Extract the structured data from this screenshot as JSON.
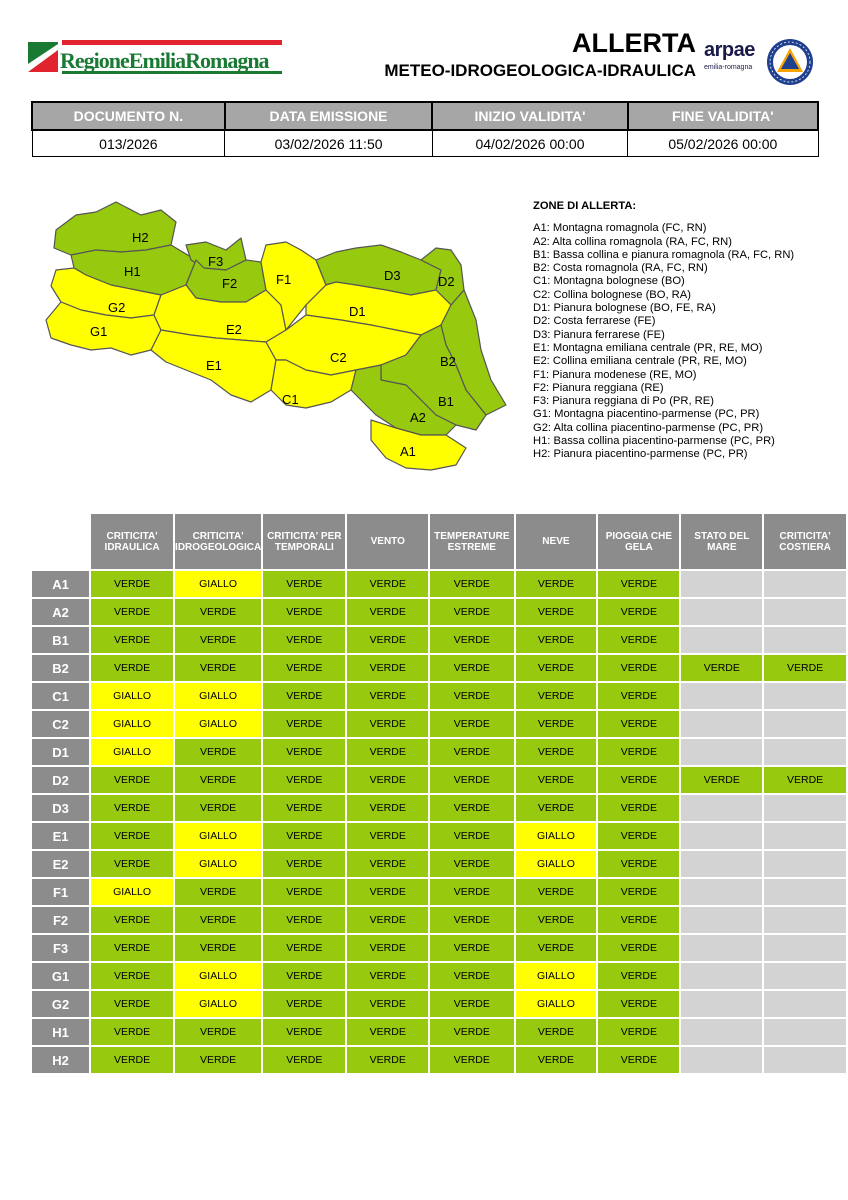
{
  "header": {
    "region_name": "RegioneEmiliaRomagna",
    "title": "ALLERTA",
    "subtitle": "METEO-IDROGEOLOGICA-IDRAULICA",
    "arpae_word": "arpae",
    "arpae_sub": "emilia-romagna"
  },
  "document": {
    "headers": [
      "DOCUMENTO N.",
      "DATA EMISSIONE",
      "INIZIO VALIDITA'",
      "FINE VALIDITA'"
    ],
    "values": [
      "013/2026",
      "03/02/2026 11:50",
      "04/02/2026 00:00",
      "05/02/2026 00:00"
    ]
  },
  "colors": {
    "verde": "#97c90e",
    "giallo": "#ffff00",
    "not_applicable": "#d3d3d3",
    "header_gray": "#8c8c8c"
  },
  "zones_legend": {
    "title": "ZONE DI ALLERTA:",
    "items": [
      "A1: Montagna romagnola (FC, RN)",
      "A2: Alta collina romagnola (RA, FC, RN)",
      "B1: Bassa collina e pianura romagnola (RA, FC, RN)",
      "B2: Costa romagnola (RA, FC, RN)",
      "C1: Montagna bolognese (BO)",
      "C2: Collina bolognese (BO, RA)",
      "D1: Pianura bolognese (BO, FE, RA)",
      "D2: Costa ferrarese (FE)",
      "D3: Pianura ferrarese (FE)",
      "E1: Montagna emiliana centrale (PR, RE, MO)",
      "E2: Collina emiliana centrale (PR, RE, MO)",
      "F1: Pianura modenese (RE, MO)",
      "F2: Pianura reggiana (RE)",
      "F3: Pianura reggiana di Po (PR, RE)",
      "G1: Montagna piacentino-parmense (PC, PR)",
      "G2: Alta collina piacentino-parmense (PC, PR)",
      "H1: Bassa collina piacentino-parmense (PC, PR)",
      "H2: Pianura piacentino-parmense (PC, PR)"
    ]
  },
  "map": {
    "zones": [
      {
        "id": "H2",
        "level": "verde"
      },
      {
        "id": "H1",
        "level": "verde"
      },
      {
        "id": "G2",
        "level": "giallo"
      },
      {
        "id": "G1",
        "level": "giallo"
      },
      {
        "id": "F3",
        "level": "verde"
      },
      {
        "id": "F2",
        "level": "verde"
      },
      {
        "id": "F1",
        "level": "giallo"
      },
      {
        "id": "E2",
        "level": "giallo"
      },
      {
        "id": "E1",
        "level": "giallo"
      },
      {
        "id": "D3",
        "level": "verde"
      },
      {
        "id": "D2",
        "level": "verde"
      },
      {
        "id": "D1",
        "level": "giallo"
      },
      {
        "id": "C2",
        "level": "giallo"
      },
      {
        "id": "C1",
        "level": "giallo"
      },
      {
        "id": "B2",
        "level": "verde"
      },
      {
        "id": "B1",
        "level": "verde"
      },
      {
        "id": "A2",
        "level": "verde"
      },
      {
        "id": "A1",
        "level": "giallo"
      }
    ]
  },
  "alert_table": {
    "columns": [
      "CRITICITA' IDRAULICA",
      "CRITICITA' IDROGEOLOGICA",
      "CRITICITA' PER TEMPORALI",
      "VENTO",
      "TEMPERATURE ESTREME",
      "NEVE",
      "PIOGGIA CHE GELA",
      "STATO DEL MARE",
      "CRITICITA' COSTIERA"
    ],
    "rows": [
      {
        "zone": "A1",
        "values": [
          "VERDE",
          "GIALLO",
          "VERDE",
          "VERDE",
          "VERDE",
          "VERDE",
          "VERDE",
          "",
          ""
        ]
      },
      {
        "zone": "A2",
        "values": [
          "VERDE",
          "VERDE",
          "VERDE",
          "VERDE",
          "VERDE",
          "VERDE",
          "VERDE",
          "",
          ""
        ]
      },
      {
        "zone": "B1",
        "values": [
          "VERDE",
          "VERDE",
          "VERDE",
          "VERDE",
          "VERDE",
          "VERDE",
          "VERDE",
          "",
          ""
        ]
      },
      {
        "zone": "B2",
        "values": [
          "VERDE",
          "VERDE",
          "VERDE",
          "VERDE",
          "VERDE",
          "VERDE",
          "VERDE",
          "VERDE",
          "VERDE"
        ]
      },
      {
        "zone": "C1",
        "values": [
          "GIALLO",
          "GIALLO",
          "VERDE",
          "VERDE",
          "VERDE",
          "VERDE",
          "VERDE",
          "",
          ""
        ]
      },
      {
        "zone": "C2",
        "values": [
          "GIALLO",
          "GIALLO",
          "VERDE",
          "VERDE",
          "VERDE",
          "VERDE",
          "VERDE",
          "",
          ""
        ]
      },
      {
        "zone": "D1",
        "values": [
          "GIALLO",
          "VERDE",
          "VERDE",
          "VERDE",
          "VERDE",
          "VERDE",
          "VERDE",
          "",
          ""
        ]
      },
      {
        "zone": "D2",
        "values": [
          "VERDE",
          "VERDE",
          "VERDE",
          "VERDE",
          "VERDE",
          "VERDE",
          "VERDE",
          "VERDE",
          "VERDE"
        ]
      },
      {
        "zone": "D3",
        "values": [
          "VERDE",
          "VERDE",
          "VERDE",
          "VERDE",
          "VERDE",
          "VERDE",
          "VERDE",
          "",
          ""
        ]
      },
      {
        "zone": "E1",
        "values": [
          "VERDE",
          "GIALLO",
          "VERDE",
          "VERDE",
          "VERDE",
          "GIALLO",
          "VERDE",
          "",
          ""
        ]
      },
      {
        "zone": "E2",
        "values": [
          "VERDE",
          "GIALLO",
          "VERDE",
          "VERDE",
          "VERDE",
          "GIALLO",
          "VERDE",
          "",
          ""
        ]
      },
      {
        "zone": "F1",
        "values": [
          "GIALLO",
          "VERDE",
          "VERDE",
          "VERDE",
          "VERDE",
          "VERDE",
          "VERDE",
          "",
          ""
        ]
      },
      {
        "zone": "F2",
        "values": [
          "VERDE",
          "VERDE",
          "VERDE",
          "VERDE",
          "VERDE",
          "VERDE",
          "VERDE",
          "",
          ""
        ]
      },
      {
        "zone": "F3",
        "values": [
          "VERDE",
          "VERDE",
          "VERDE",
          "VERDE",
          "VERDE",
          "VERDE",
          "VERDE",
          "",
          ""
        ]
      },
      {
        "zone": "G1",
        "values": [
          "VERDE",
          "GIALLO",
          "VERDE",
          "VERDE",
          "VERDE",
          "GIALLO",
          "VERDE",
          "",
          ""
        ]
      },
      {
        "zone": "G2",
        "values": [
          "VERDE",
          "GIALLO",
          "VERDE",
          "VERDE",
          "VERDE",
          "GIALLO",
          "VERDE",
          "",
          ""
        ]
      },
      {
        "zone": "H1",
        "values": [
          "VERDE",
          "VERDE",
          "VERDE",
          "VERDE",
          "VERDE",
          "VERDE",
          "VERDE",
          "",
          ""
        ]
      },
      {
        "zone": "H2",
        "values": [
          "VERDE",
          "VERDE",
          "VERDE",
          "VERDE",
          "VERDE",
          "VERDE",
          "VERDE",
          "",
          ""
        ]
      }
    ]
  }
}
